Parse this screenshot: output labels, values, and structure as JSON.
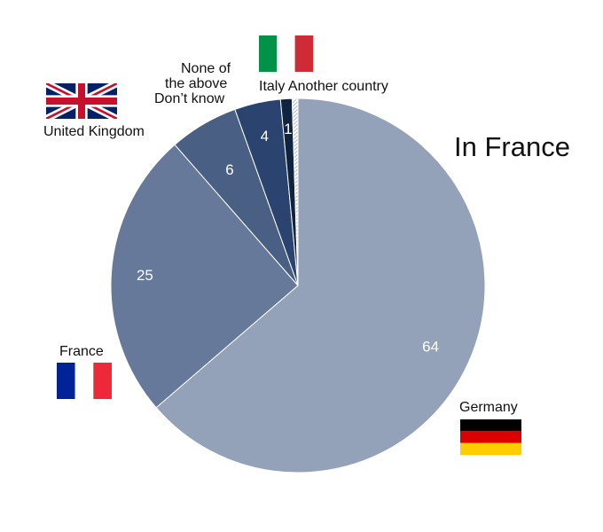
{
  "chart_data": {
    "type": "pie",
    "title": "In France",
    "slices": [
      {
        "label": "Germany",
        "value": 64,
        "value_label": "64",
        "color": "#93a1b9"
      },
      {
        "label": "France",
        "value": 25,
        "value_label": "25",
        "color": "#66799a"
      },
      {
        "label": "United Kingdom",
        "value": 6,
        "value_label": "6",
        "color": "#4a5f84"
      },
      {
        "label": "None of the above / Don’t know",
        "value": 4,
        "value_label": "4",
        "color": "#2a446f"
      },
      {
        "label": "Italy",
        "value": 1,
        "value_label": "1",
        "color": "#11243f"
      },
      {
        "label": "Another country",
        "value": 0.5,
        "value_label": "",
        "color": "hatched"
      }
    ]
  },
  "labels": {
    "title": "In France",
    "germany": "Germany",
    "france": "France",
    "uk": "United Kingdom",
    "none_line1": "None of",
    "none_line2": "the above",
    "none_line3": "Don’t know",
    "italy_another": "Italy Another country"
  },
  "flags": {
    "germany": [
      "#000000",
      "#dd0000",
      "#ffcc00"
    ],
    "france": [
      "#002395",
      "#ffffff",
      "#ed2939"
    ],
    "italy": [
      "#009246",
      "#ffffff",
      "#ce2b37"
    ],
    "uk": {
      "blue": "#012169",
      "red": "#c8102e",
      "white": "#ffffff"
    }
  }
}
